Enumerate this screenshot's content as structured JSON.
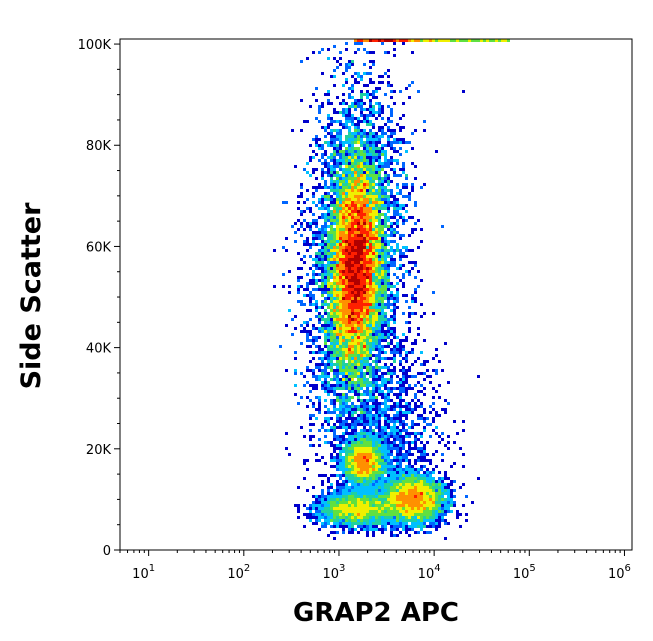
{
  "chart_data": {
    "type": "scatter",
    "subtype": "flow-cytometry-density-dot-plot",
    "title": "",
    "xlabel": "GRAP2 APC",
    "ylabel": "Side Scatter",
    "x_scale": "log",
    "xlim": [
      5,
      1200000
    ],
    "ylim": [
      0,
      101000
    ],
    "x_ticks": [
      {
        "value": 10,
        "base": "10",
        "exp": "1"
      },
      {
        "value": 100,
        "base": "10",
        "exp": "2"
      },
      {
        "value": 1000,
        "base": "10",
        "exp": "3"
      },
      {
        "value": 10000,
        "base": "10",
        "exp": "4"
      },
      {
        "value": 100000,
        "base": "10",
        "exp": "5"
      },
      {
        "value": 1000000,
        "base": "10",
        "exp": "6"
      }
    ],
    "y_ticks": [
      {
        "value": 0,
        "label": "0"
      },
      {
        "value": 20000,
        "label": "20K"
      },
      {
        "value": 40000,
        "label": "40K"
      },
      {
        "value": 60000,
        "label": "60K"
      },
      {
        "value": 80000,
        "label": "80K"
      },
      {
        "value": 100000,
        "label": "100K"
      }
    ],
    "colormap": [
      "#0000cc",
      "#0066ff",
      "#00c0ff",
      "#20d0a0",
      "#60e040",
      "#f0f000",
      "#ff9000",
      "#ff2000",
      "#b00000"
    ],
    "populations": [
      {
        "x_center": 1500,
        "x_log_spread": 0.12,
        "y_center": 56000,
        "y_spread": 9500,
        "tilt": 0.14,
        "weight": 0.62
      },
      {
        "x_center": 1500,
        "x_log_spread": 0.25,
        "y_center": 58000,
        "y_spread": 17000,
        "tilt": 0.1,
        "weight": 0.14
      },
      {
        "x_center": 1800,
        "x_log_spread": 0.1,
        "y_center": 17500,
        "y_spread": 2200,
        "tilt": 0,
        "weight": 0.06
      },
      {
        "x_center": 6000,
        "x_log_spread": 0.16,
        "y_center": 10000,
        "y_spread": 2200,
        "tilt": 0,
        "weight": 0.1
      },
      {
        "x_center": 1500,
        "x_log_spread": 0.2,
        "y_center": 8000,
        "y_spread": 1600,
        "tilt": 0,
        "weight": 0.05
      },
      {
        "x_center": 3000,
        "x_log_spread": 0.3,
        "y_center": 22000,
        "y_spread": 10000,
        "tilt": 0,
        "weight": 0.03
      }
    ],
    "saturation_band": {
      "y": 100800,
      "x_from": 1500,
      "x_to": 60000
    },
    "grid": false,
    "legend": "none"
  }
}
